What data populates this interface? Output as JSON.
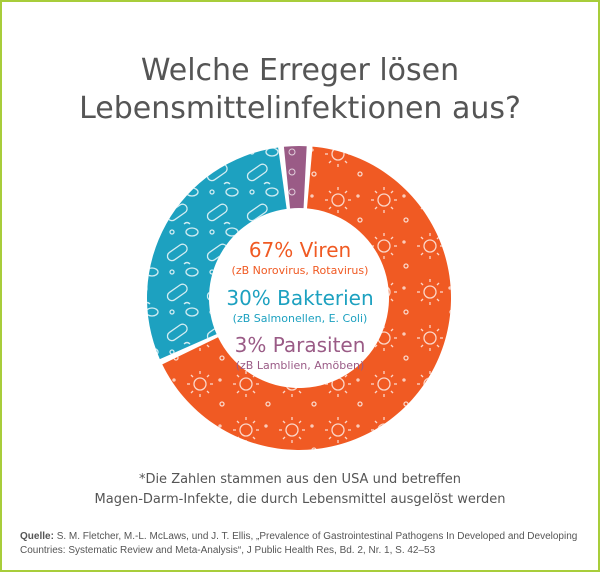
{
  "header": {
    "title_line1": "Welche Erreger lösen",
    "title_line2": "Lebensmittelinfektionen aus?"
  },
  "chart_data": {
    "type": "pie",
    "categories": [
      "Viren",
      "Bakterien",
      "Parasiten"
    ],
    "values": [
      67,
      30,
      3
    ],
    "colors": [
      "#f05a23",
      "#1da1c0",
      "#9a5b86"
    ],
    "labels": [
      {
        "value": "67% Viren",
        "detail": "(zB Norovirus, Rotavirus)"
      },
      {
        "value": "30% Bakterien",
        "detail": "(zB Salmonellen, E. Coli)"
      },
      {
        "value": "3% Parasiten",
        "detail": "(zB Lamblien, Amöben)"
      }
    ],
    "title": "Welche Erreger lösen Lebensmittelinfektionen aus?"
  },
  "footnote": {
    "line1": "*Die Zahlen stammen aus den USA und betreffen",
    "line2": "Magen-Darm-Infekte, die durch Lebensmittel ausgelöst werden"
  },
  "source": {
    "label": "Quelle:",
    "text": "S. M. Fletcher, M.-L. McLaws, und J. T. Ellis, „Prevalence of Gastrointestinal Pathogens In Developed and Developing Countries: Systematic Review and Meta-Analysis“, J Public Health Res, Bd. 2, Nr. 1, S. 42–53"
  }
}
